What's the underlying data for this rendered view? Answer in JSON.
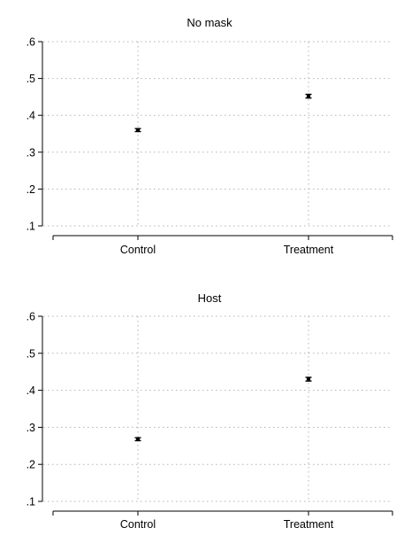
{
  "chart_data": [
    {
      "type": "scatter",
      "title": "No mask",
      "xlabel": "",
      "ylabel": "",
      "categories": [
        "Control",
        "Treatment"
      ],
      "series": [
        {
          "values": [
            0.36,
            0.452
          ],
          "ci_low": [
            0.356,
            0.447
          ],
          "ci_high": [
            0.364,
            0.457
          ]
        }
      ],
      "ylim": [
        0.1,
        0.6
      ],
      "yticks": [
        0.1,
        0.2,
        0.3,
        0.4,
        0.5,
        0.6
      ],
      "ytick_labels": [
        ".1",
        ".2",
        ".3",
        ".4",
        ".5",
        ".6"
      ],
      "grid": true
    },
    {
      "type": "scatter",
      "title": "Host",
      "xlabel": "",
      "ylabel": "",
      "categories": [
        "Control",
        "Treatment"
      ],
      "series": [
        {
          "values": [
            0.268,
            0.43
          ],
          "ci_low": [
            0.264,
            0.425
          ],
          "ci_high": [
            0.272,
            0.435
          ]
        }
      ],
      "ylim": [
        0.1,
        0.6
      ],
      "yticks": [
        0.1,
        0.2,
        0.3,
        0.4,
        0.5,
        0.6
      ],
      "ytick_labels": [
        ".1",
        ".2",
        ".3",
        ".4",
        ".5",
        ".6"
      ],
      "grid": true
    }
  ]
}
